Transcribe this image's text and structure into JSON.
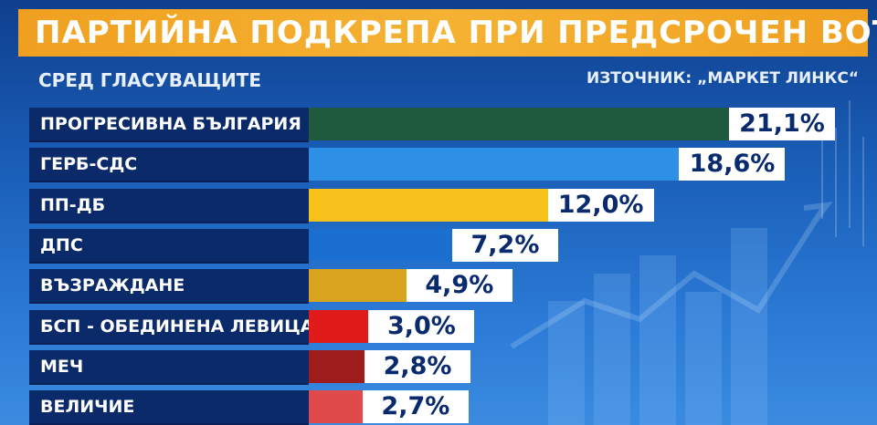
{
  "header": {
    "title": "ПАРТИЙНА ПОДКРЕПА ПРИ ПРЕДСРОЧЕН ВОТ",
    "subtitle": "СРЕД ГЛАСУВАЩИТЕ",
    "source": "ИЗТОЧНИК: „МАРКЕТ ЛИНКС“"
  },
  "chart_data": {
    "type": "bar",
    "orientation": "horizontal",
    "categories": [
      "ПРОГРЕСИВНА БЪЛГАРИЯ",
      "ГЕРБ-СДС",
      "ПП-ДБ",
      "ДПС",
      "ВЪЗРАЖДАНЕ",
      "БСП - ОБЕДИНЕНА ЛЕВИЦА",
      "МЕЧ",
      "ВЕЛИЧИЕ"
    ],
    "values": [
      21.1,
      18.6,
      12.0,
      7.2,
      4.9,
      3.0,
      2.8,
      2.7
    ],
    "value_labels": [
      "21,1%",
      "18,6%",
      "12,0%",
      "7,2%",
      "4,9%",
      "3,0%",
      "2,8%",
      "2,7%"
    ],
    "colors": [
      "#1f5a3e",
      "#2e8fe6",
      "#f7c21c",
      "#1a6fd0",
      "#d9a41f",
      "#e11a1a",
      "#9e1c1c",
      "#e04a4a"
    ],
    "title": "ПАРТИЙНА ПОДКРЕПА ПРИ ПРЕДСРОЧЕН ВОТ",
    "subtitle": "СРЕД ГЛАСУВАЩИТЕ",
    "xlim": [
      0,
      21.1
    ],
    "grid": false,
    "legend": "none"
  }
}
